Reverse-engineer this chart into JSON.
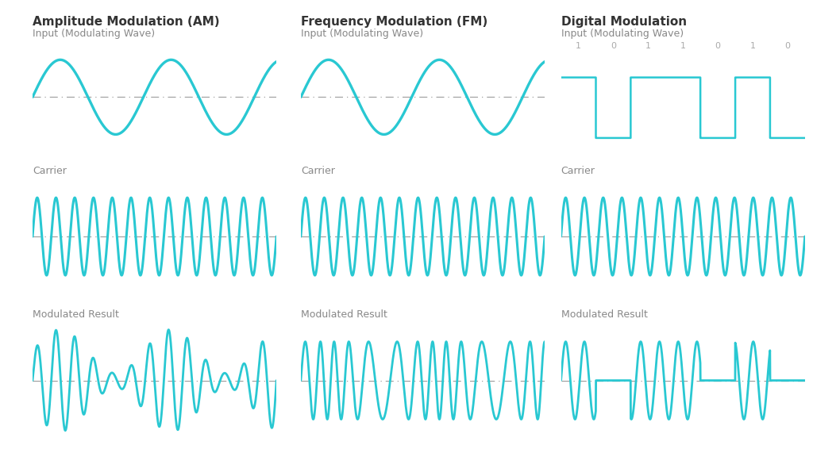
{
  "title_am": "Amplitude Modulation (AM)",
  "title_fm": "Frequency Modulation (FM)",
  "title_dm": "Digital Modulation",
  "label_input": "Input (Modulating Wave)",
  "label_carrier": "Carrier",
  "label_result": "Modulated Result",
  "wave_color": "#29C8D2",
  "dash_color": "#999999",
  "text_color": "#888888",
  "title_color": "#333333",
  "background_color": "#ffffff",
  "digital_bits": [
    1,
    0,
    1,
    1,
    0,
    1,
    0
  ],
  "carrier_freq": 13,
  "modulating_freq": 2.2,
  "carrier_lw": 2.2,
  "modulating_lw": 2.4,
  "result_lw": 2.0,
  "digital_lw": 1.8,
  "figsize": [
    10.24,
    5.76
  ],
  "dpi": 100,
  "title_fontsize": 11,
  "label_fontsize": 9,
  "bit_fontsize": 8
}
